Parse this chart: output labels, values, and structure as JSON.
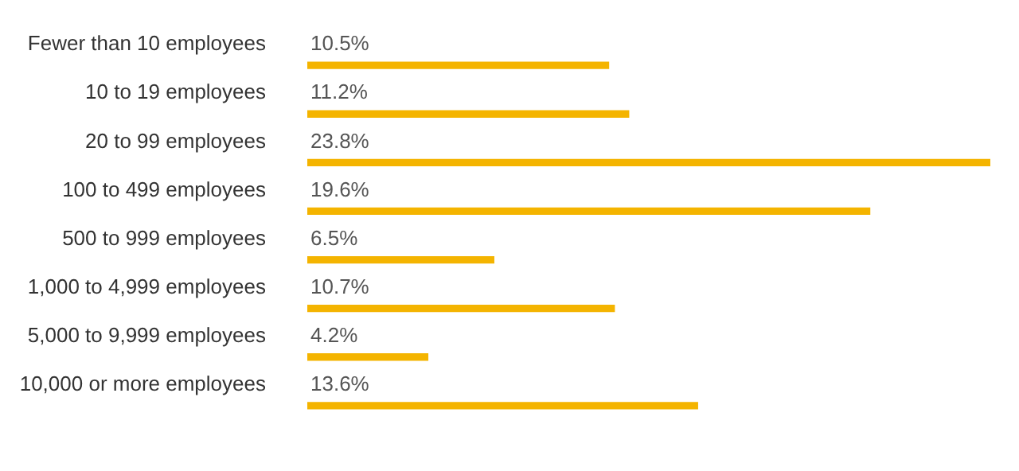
{
  "chart_data": {
    "type": "bar",
    "orientation": "horizontal",
    "categories": [
      "Fewer than 10 employees",
      "10 to 19 employees",
      "20 to 99 employees",
      "100 to 499 employees",
      "500 to 999 employees",
      "1,000 to 4,999 employees",
      "5,000 to 9,999 employees",
      "10,000 or more employees"
    ],
    "values": [
      10.5,
      11.2,
      23.8,
      19.6,
      6.5,
      10.7,
      4.2,
      13.6
    ],
    "value_labels": [
      "10.5%",
      "11.2%",
      "23.8%",
      "19.6%",
      "6.5%",
      "10.7%",
      "4.2%",
      "13.6%"
    ],
    "color": "#f4b400"
  }
}
